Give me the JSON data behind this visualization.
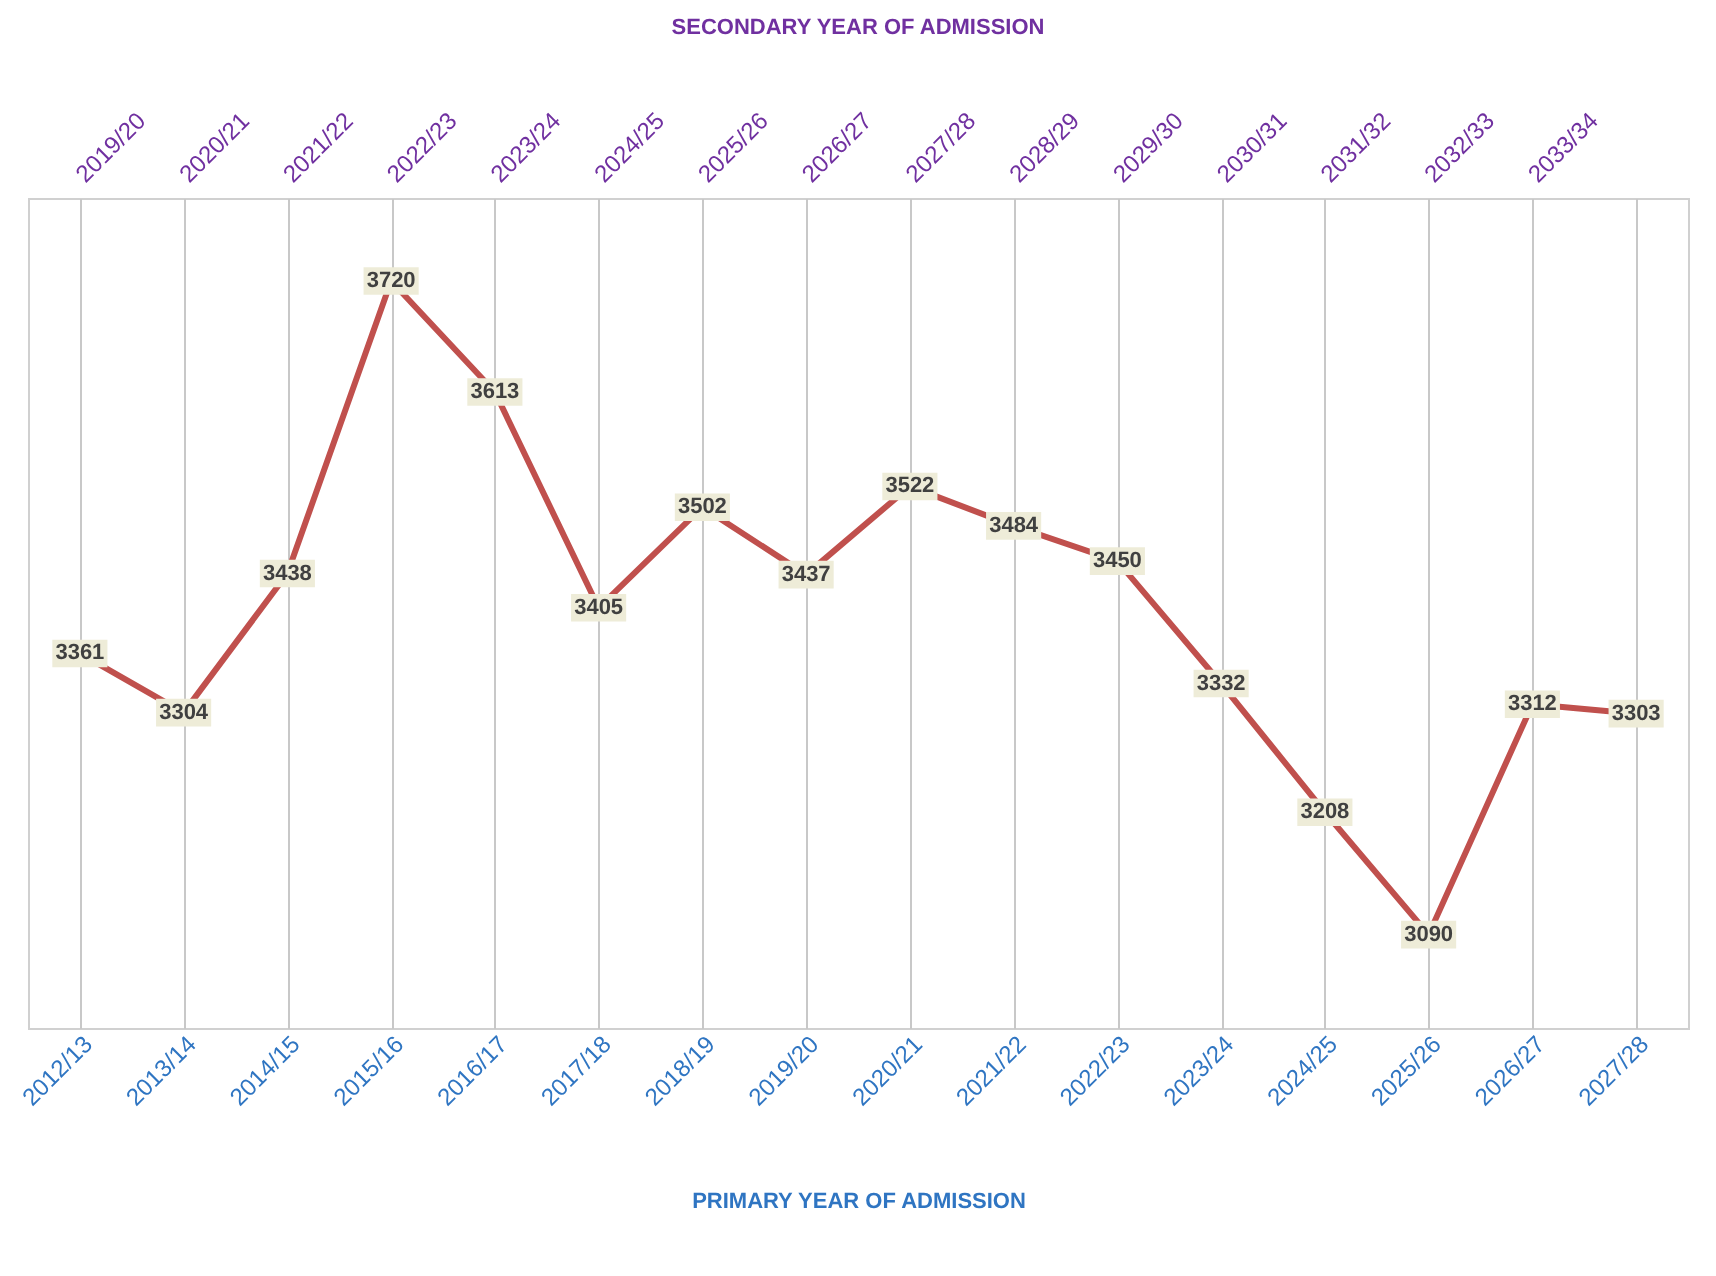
{
  "chart_data": {
    "type": "line",
    "xlabel": "PRIMARY YEAR OF ADMISSION",
    "x2label": "SECONDARY YEAR OF ADMISSION",
    "categories": [
      "2012/13",
      "2013/14",
      "2014/15",
      "2015/16",
      "2016/17",
      "2017/18",
      "2018/19",
      "2019/20",
      "2020/21",
      "2021/22",
      "2022/23",
      "2023/24",
      "2024/25",
      "2025/26",
      "2026/27",
      "2027/28"
    ],
    "series": [
      {
        "color": "#c0504d",
        "values": [
          3361,
          3304,
          3438,
          3720,
          3613,
          3405,
          3502,
          3437,
          3522,
          3484,
          3450,
          3332,
          3208,
          3090,
          3312,
          3303
        ]
      }
    ],
    "ylim": [
      3000,
      3800
    ],
    "annotations": [
      "2019/20",
      "2020/21",
      "2021/22",
      "2022/23",
      "2023/24",
      "2024/25",
      "2025/26",
      "2026/27",
      "2027/28",
      "2028/29",
      "2029/30",
      "2030/31",
      "2031/32",
      "2032/33",
      "2033/34"
    ],
    "marker": "square",
    "data_labels": true,
    "grid": "x",
    "tick_labels": "x"
  }
}
